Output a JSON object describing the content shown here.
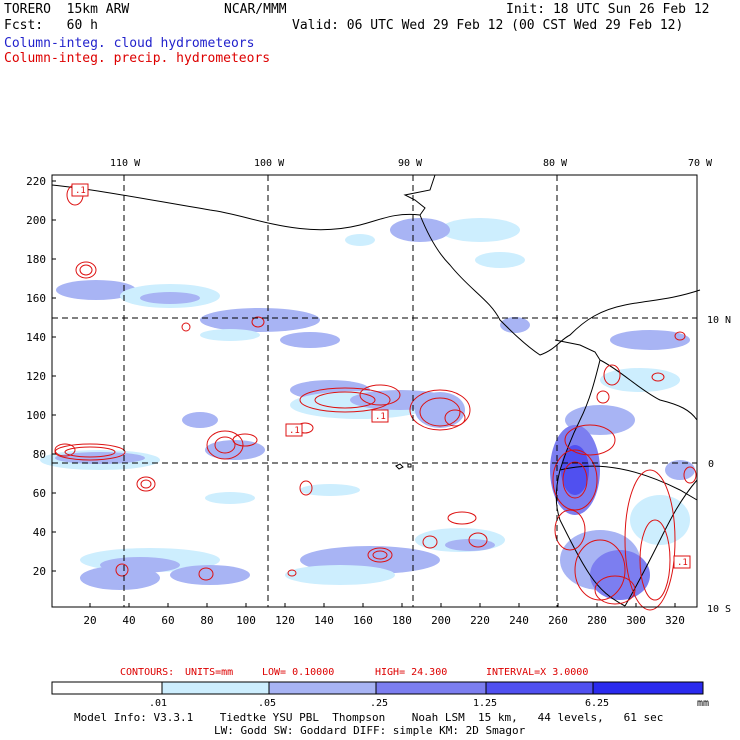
{
  "header": {
    "model": "TORERO  15km ARW",
    "center": "NCAR/MMM",
    "init": "Init: 18 UTC Sun 26 Feb 12",
    "fcst": "Fcst:   60 h",
    "valid": "Valid: 06 UTC Wed 29 Feb 12 (00 CST Wed 29 Feb 12)",
    "field_cloud": "Column-integ. cloud hydrometeors",
    "field_precip": "Column-integ. precip. hydrometeors"
  },
  "map": {
    "lon_labels": [
      "110 W",
      "100 W",
      "90 W",
      "80 W",
      "70 W"
    ],
    "lat_labels": [
      "10 N",
      "0",
      "10 S"
    ],
    "y_ticks": [
      "220",
      "200",
      "180",
      "160",
      "140",
      "120",
      "100",
      "80",
      "60",
      "40",
      "20"
    ],
    "x_ticks": [
      "20",
      "40",
      "60",
      "80",
      "100",
      "120",
      "140",
      "160",
      "180",
      "200",
      "220",
      "240",
      "260",
      "280",
      "300",
      "320"
    ],
    "contour_value_labels": [
      ".1",
      ".1",
      ".1",
      ".1"
    ]
  },
  "contour_info": {
    "contours": "CONTOURS:",
    "units": "UNITS=mm",
    "low": "LOW= 0.10000",
    "high": "HIGH=  24.300",
    "interval": "INTERVAL=X  3.0000"
  },
  "colorbar": {
    "labels": [
      ".01",
      ".05",
      ".25",
      "1.25",
      "6.25"
    ],
    "units": "mm",
    "colors": [
      "#ffffff",
      "#cdeefe",
      "#a8b4f4",
      "#7c7ef0",
      "#5050f0",
      "#2a2aee"
    ]
  },
  "footer": {
    "line1": "Model Info: V3.3.1    Tiedtke YSU PBL  Thompson    Noah LSM  15 km,   44 levels,   61 sec",
    "line2": "LW: Godd SW: Goddard DIFF: simple KM: 2D Smagor"
  }
}
